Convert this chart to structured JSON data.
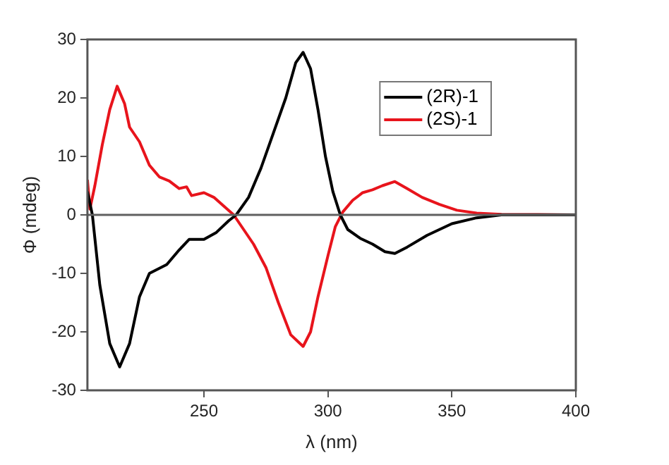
{
  "chart_data": {
    "type": "line",
    "xlabel": "λ (nm)",
    "ylabel": "Φ (mdeg)",
    "xlim": [
      203,
      400
    ],
    "xticks": [
      250,
      300,
      350,
      400
    ],
    "ylim": [
      -30,
      30
    ],
    "yticks": [
      -30,
      -20,
      -10,
      0,
      10,
      20,
      30
    ],
    "grid": false,
    "legend": "top right",
    "marker": "none",
    "line_style": "solid",
    "ref_lines": [
      {
        "axis": "y",
        "value": 0,
        "color": "#606060"
      }
    ],
    "series": [
      {
        "name": "(2R)-1",
        "color": "#000000",
        "x": [
          203,
          205,
          208,
          212,
          216,
          220,
          224,
          228,
          235,
          240,
          244,
          250,
          255,
          260,
          263,
          268,
          273,
          278,
          283,
          287,
          290,
          293,
          296,
          299,
          302,
          305,
          308,
          313,
          318,
          323,
          327,
          332,
          340,
          350,
          360,
          370,
          400
        ],
        "values": [
          4,
          0,
          -12,
          -22,
          -26,
          -22,
          -14,
          -10,
          -8.5,
          -6,
          -4.2,
          -4.2,
          -3,
          -1,
          0,
          3,
          8,
          14,
          20,
          26,
          27.8,
          25,
          18,
          10,
          4,
          0,
          -2.5,
          -4,
          -5,
          -6.3,
          -6.6,
          -5.5,
          -3.5,
          -1.5,
          -0.5,
          0,
          0
        ]
      },
      {
        "name": "(2S)-1",
        "color": "#e8141c",
        "x": [
          203,
          204,
          206,
          209,
          212,
          215,
          218,
          220,
          224,
          228,
          232,
          236,
          240,
          243,
          245,
          250,
          254,
          258,
          262,
          266,
          270,
          275,
          280,
          285,
          290,
          293,
          296,
          300,
          303,
          306,
          310,
          314,
          318,
          322,
          327,
          332,
          338,
          345,
          352,
          360,
          370,
          400
        ],
        "values": [
          6,
          1,
          5,
          12,
          18,
          22,
          19,
          15,
          12.5,
          8.5,
          6.5,
          5.8,
          4.5,
          4.8,
          3.3,
          3.8,
          3,
          1.5,
          0,
          -2.5,
          -5,
          -9,
          -15,
          -20.5,
          -22.5,
          -20,
          -14,
          -7,
          -2,
          0.5,
          2.5,
          3.8,
          4.3,
          5,
          5.7,
          4.5,
          3,
          1.8,
          0.8,
          0.3,
          0.1,
          0
        ]
      }
    ]
  }
}
